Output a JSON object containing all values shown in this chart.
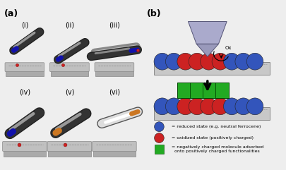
{
  "fig_width": 4.06,
  "fig_height": 2.41,
  "dpi": 100,
  "bg_color": "#eeeeee",
  "blue_color": "#3355bb",
  "red_color": "#cc2222",
  "green_color": "#22aa22",
  "platform_color": "#c0c0c0",
  "platform_edge": "#888888",
  "pen_dark": "#333333",
  "pen_mid": "#666666",
  "pen_light": "#aaaaaa",
  "pen_tip_blue": "#1111aa",
  "pen_tip_orange": "#cc7722",
  "probe_fill": "#aaaacc",
  "probe_edge": "#555577",
  "label_a": "(a)",
  "label_b": "(b)",
  "sub_labels_top": [
    "(i)",
    "(ii)",
    "(iii)"
  ],
  "sub_labels_bot": [
    "(iv)",
    "(v)",
    "(vi)"
  ],
  "legend_texts": [
    "= reduced state (e.g. neutral ferrocene)",
    "= oxidized state (positively charged)",
    "= negatively charged molecule adsorbed\n  onto positively charged functionalities"
  ],
  "circle_colors_top": [
    "#3355bb",
    "#3355bb",
    "#cc2222",
    "#cc2222",
    "#cc2222",
    "#cc2222",
    "#3355bb",
    "#3355bb",
    "#3355bb"
  ],
  "circle_colors_bot": [
    "#3355bb",
    "#3355bb",
    "#cc2222",
    "#cc2222",
    "#cc2222",
    "#cc2222",
    "#3355bb",
    "#3355bb",
    "#3355bb"
  ]
}
